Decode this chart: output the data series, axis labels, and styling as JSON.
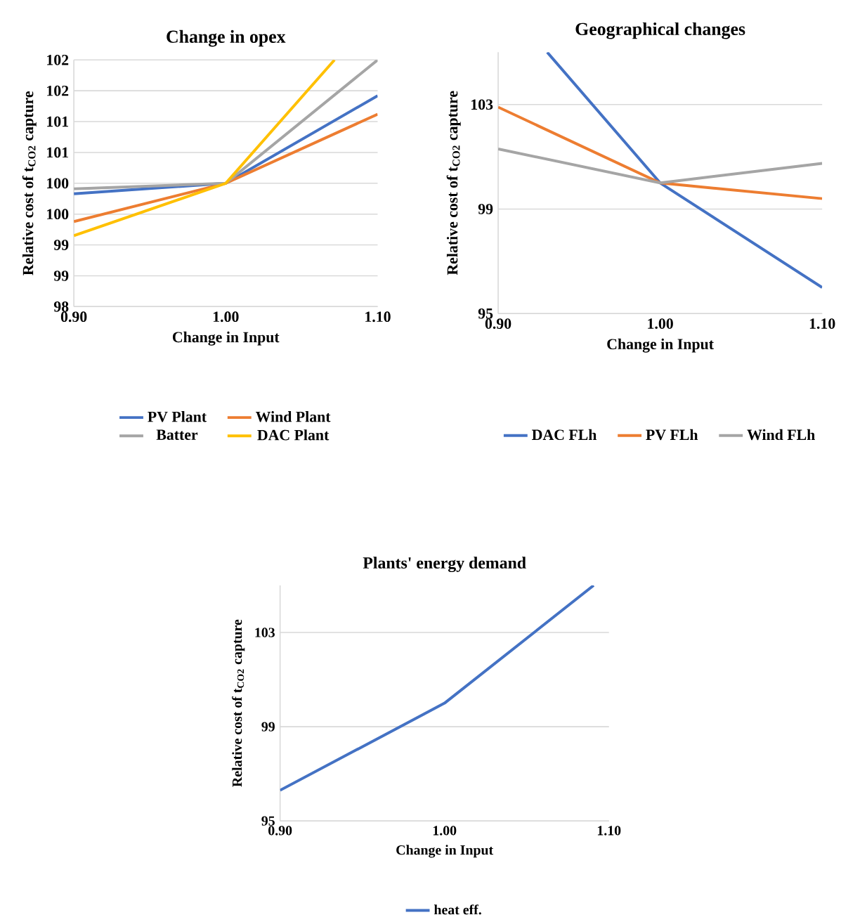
{
  "chart_data": [
    {
      "type": "line",
      "title": "Change in opex",
      "xlabel": "Change in Input",
      "ylabel": "Relative cost of t$_{CO2}$ capture",
      "x": [
        0.9,
        1.0,
        1.1
      ],
      "xlim": [
        0.9,
        1.1
      ],
      "xticks": [
        {
          "value": 0.9,
          "label": "0.90"
        },
        {
          "value": 1.0,
          "label": "1.00"
        },
        {
          "value": 1.1,
          "label": "1.10"
        }
      ],
      "ylim": [
        98,
        102
      ],
      "yticks": [
        98,
        {
          "value": 98.5,
          "label": "99"
        },
        99,
        {
          "value": 99.5,
          "label": "100"
        },
        100,
        {
          "value": 100.5,
          "label": "101"
        },
        101,
        {
          "value": 101.5,
          "label": "102"
        },
        102
      ],
      "grid": "y",
      "legend": "bottom",
      "series": [
        {
          "name": "PV Plant",
          "color": "#4472c4",
          "values": [
            99.83,
            100,
            101.42
          ]
        },
        {
          "name": "Wind Plant",
          "color": "#ed7d31",
          "values": [
            99.38,
            100,
            101.12
          ]
        },
        {
          "name": "Batter",
          "color": "#a5a5a5",
          "values": [
            99.91,
            100,
            102.0
          ]
        },
        {
          "name": "DAC Plant",
          "color": "#ffc000",
          "x": [
            0.9,
            1.0,
            1.0716
          ],
          "values": [
            99.15,
            100,
            102.0
          ]
        }
      ]
    },
    {
      "type": "line",
      "title": "Geographical changes",
      "xlabel": "Change in Input",
      "ylabel": "Relative cost of t$_{CO2}$ capture",
      "x": [
        0.9,
        1.0,
        1.1
      ],
      "xlim": [
        0.9,
        1.1
      ],
      "xticks": [
        {
          "value": 0.9,
          "label": "0.90"
        },
        {
          "value": 1.0,
          "label": "1.00"
        },
        {
          "value": 1.1,
          "label": "1.10"
        }
      ],
      "ylim": [
        95,
        105
      ],
      "yticks": [
        95,
        99,
        103
      ],
      "grid": "y",
      "legend": "bottom",
      "series": [
        {
          "name": "DAC FLh",
          "color": "#4472c4",
          "x": [
            0.9303,
            1.0,
            1.1
          ],
          "values": [
            105,
            100,
            96
          ]
        },
        {
          "name": "PV FLh",
          "color": "#ed7d31",
          "values": [
            102.9,
            100,
            99.4
          ]
        },
        {
          "name": "Wind FLh",
          "color": "#a5a5a5",
          "values": [
            101.3,
            100,
            100.75
          ]
        }
      ]
    },
    {
      "type": "line",
      "title": "Plants' energy demand",
      "xlabel": "Change in Input",
      "ylabel": "Relative cost of t$_{CO2}$ capture",
      "xlim": [
        0.9,
        1.1
      ],
      "xticks": [
        {
          "value": 0.9,
          "label": "0.90"
        },
        {
          "value": 1.0,
          "label": "1.00"
        },
        {
          "value": 1.1,
          "label": "1.10"
        }
      ],
      "ylim": [
        95,
        105
      ],
      "yticks": [
        95,
        99,
        103
      ],
      "grid": "y",
      "legend": "bottom",
      "series": [
        {
          "name": "heat eff.",
          "color": "#4472c4",
          "x": [
            0.9,
            1.0,
            1.0907
          ],
          "values": [
            96.3,
            100,
            105
          ]
        }
      ]
    }
  ]
}
